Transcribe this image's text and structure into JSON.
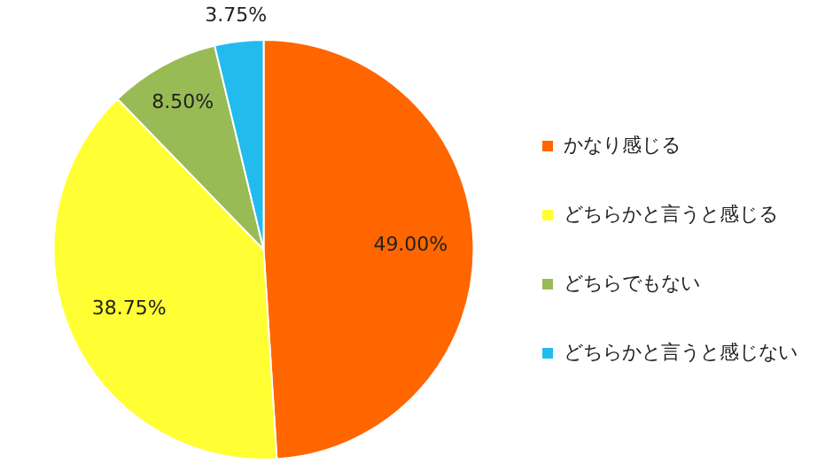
{
  "chart_data": {
    "type": "pie",
    "categories": [
      "かなり感じる",
      "どちらかと言うと感じる",
      "どちらでもない",
      "どちらかと言うと感じない"
    ],
    "values": [
      49.0,
      38.75,
      8.5,
      3.75
    ],
    "value_labels": [
      "49.00%",
      "38.75%",
      "8.50%",
      "3.75%"
    ],
    "colors": [
      "#ff6600",
      "#ffff33",
      "#99bb55",
      "#22bbee"
    ],
    "legend": "right"
  }
}
